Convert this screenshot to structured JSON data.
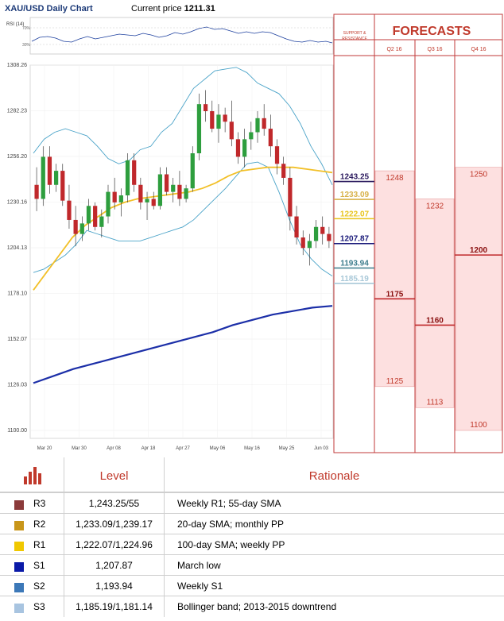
{
  "header": {
    "title": "XAU/USD Daily Chart",
    "price_label": "Current price",
    "price_value": "1211.31"
  },
  "rsi": {
    "label": "RSI (14)",
    "tick_top": "70%",
    "tick_bottom": "30%"
  },
  "forecasts": {
    "title": "FORECASTS",
    "sr_label_line1": "SUPPORT &",
    "sr_label_line2": "RESISTANCE",
    "columns": [
      {
        "label": "Q2 16",
        "high": 1248,
        "low": 1125,
        "mid": 1175
      },
      {
        "label": "Q3 16",
        "high": 1232,
        "low": 1113,
        "mid": 1160
      },
      {
        "label": "Q4 16",
        "high": 1250,
        "low": 1100,
        "mid": 1200
      }
    ]
  },
  "sr_levels": [
    {
      "value": "1243.25",
      "color": "#2b1a5e"
    },
    {
      "value": "1233.09",
      "color": "#d8b24a"
    },
    {
      "value": "1222.07",
      "color": "#e8c41a"
    },
    {
      "value": "1207.87",
      "color": "#1a1a7a"
    },
    {
      "value": "1193.94",
      "color": "#3c7c8c"
    },
    {
      "value": "1185.19",
      "color": "#a8c8d8"
    }
  ],
  "chart_data": {
    "type": "candlestick",
    "title": "XAU/USD Daily Chart",
    "yticks": [
      "1308.26",
      "1282.23",
      "1256.20",
      "1230.16",
      "1204.13",
      "1178.10",
      "1152.07",
      "1126.03",
      "1100.00"
    ],
    "ylim": [
      1100,
      1308.26
    ],
    "xticks": [
      "Mar 20",
      "Mar 30",
      "Apr 08",
      "Apr 18",
      "Apr 27",
      "May 06",
      "May 16",
      "May 25",
      "Jun 03"
    ],
    "series": [
      {
        "name": "20-day SMA"
      },
      {
        "name": "100-day SMA"
      },
      {
        "name": "Bollinger band"
      },
      {
        "name": "55-day SMA"
      }
    ],
    "candles": [
      [
        1240,
        1250,
        1225,
        1232
      ],
      [
        1232,
        1262,
        1228,
        1256
      ],
      [
        1256,
        1262,
        1235,
        1240
      ],
      [
        1240,
        1252,
        1236,
        1248
      ],
      [
        1248,
        1252,
        1228,
        1231
      ],
      [
        1231,
        1240,
        1215,
        1220
      ],
      [
        1220,
        1228,
        1205,
        1212
      ],
      [
        1212,
        1222,
        1208,
        1218
      ],
      [
        1218,
        1232,
        1214,
        1228
      ],
      [
        1228,
        1230,
        1214,
        1216
      ],
      [
        1216,
        1226,
        1210,
        1222
      ],
      [
        1222,
        1240,
        1218,
        1236
      ],
      [
        1236,
        1244,
        1226,
        1230
      ],
      [
        1230,
        1238,
        1222,
        1234
      ],
      [
        1234,
        1258,
        1230,
        1254
      ],
      [
        1254,
        1258,
        1236,
        1240
      ],
      [
        1240,
        1244,
        1226,
        1230
      ],
      [
        1230,
        1236,
        1220,
        1232
      ],
      [
        1232,
        1236,
        1226,
        1228
      ],
      [
        1228,
        1250,
        1226,
        1246
      ],
      [
        1246,
        1250,
        1234,
        1236
      ],
      [
        1236,
        1244,
        1230,
        1240
      ],
      [
        1240,
        1248,
        1228,
        1232
      ],
      [
        1232,
        1240,
        1230,
        1238
      ],
      [
        1238,
        1262,
        1236,
        1258
      ],
      [
        1258,
        1292,
        1254,
        1286
      ],
      [
        1286,
        1294,
        1276,
        1282
      ],
      [
        1282,
        1288,
        1270,
        1272
      ],
      [
        1272,
        1286,
        1264,
        1280
      ],
      [
        1280,
        1284,
        1270,
        1276
      ],
      [
        1276,
        1288,
        1262,
        1266
      ],
      [
        1266,
        1270,
        1252,
        1256
      ],
      [
        1256,
        1272,
        1250,
        1266
      ],
      [
        1266,
        1276,
        1260,
        1270
      ],
      [
        1270,
        1282,
        1264,
        1278
      ],
      [
        1278,
        1286,
        1268,
        1272
      ],
      [
        1272,
        1280,
        1256,
        1262
      ],
      [
        1262,
        1266,
        1246,
        1252
      ],
      [
        1252,
        1256,
        1240,
        1244
      ],
      [
        1244,
        1250,
        1214,
        1222
      ],
      [
        1222,
        1228,
        1206,
        1210
      ],
      [
        1210,
        1214,
        1200,
        1204
      ],
      [
        1204,
        1212,
        1194,
        1208
      ],
      [
        1208,
        1220,
        1204,
        1216
      ],
      [
        1216,
        1222,
        1206,
        1212
      ],
      [
        1212,
        1216,
        1204,
        1208
      ]
    ],
    "bollinger_upper": [
      1258,
      1266,
      1270,
      1272,
      1270,
      1268,
      1262,
      1255,
      1252,
      1254,
      1260,
      1262,
      1270,
      1275,
      1285,
      1295,
      1300,
      1305,
      1306,
      1307,
      1304,
      1298,
      1295,
      1292,
      1285,
      1275,
      1262,
      1252,
      1240
    ],
    "bollinger_lower": [
      1190,
      1192,
      1196,
      1200,
      1206,
      1214,
      1212,
      1210,
      1208,
      1208,
      1208,
      1210,
      1212,
      1214,
      1216,
      1220,
      1226,
      1232,
      1238,
      1245,
      1252,
      1253,
      1250,
      1236,
      1220,
      1206,
      1198,
      1192,
      1188
    ],
    "sma20": [
      1180,
      1190,
      1200,
      1210,
      1217,
      1222,
      1227,
      1230,
      1232,
      1233,
      1234,
      1235,
      1236,
      1238,
      1241,
      1245,
      1248,
      1249,
      1250,
      1250,
      1250,
      1249,
      1248,
      1247
    ],
    "sma100": [
      1127,
      1131,
      1135,
      1138,
      1141,
      1144,
      1147,
      1150,
      1153,
      1156,
      1160,
      1163,
      1166,
      1168,
      1170,
      1171
    ]
  },
  "table": {
    "head_level": "Level",
    "head_rationale": "Rationale",
    "rows": [
      {
        "code": "R3",
        "level": "1,243.25/55",
        "rationale": "Weekly R1; 55-day SMA",
        "color": "#8b3a3a"
      },
      {
        "code": "R2",
        "level": "1,233.09/1,239.17",
        "rationale": "20-day SMA; monthly PP",
        "color": "#c8961a"
      },
      {
        "code": "R1",
        "level": "1,222.07/1,224.96",
        "rationale": "100-day SMA; weekly PP",
        "color": "#f0c800"
      },
      {
        "code": "S1",
        "level": "1,207.87",
        "rationale": "March low",
        "color": "#0a1aa8"
      },
      {
        "code": "S2",
        "level": "1,193.94",
        "rationale": "Weekly S1",
        "color": "#3c78b8"
      },
      {
        "code": "S3",
        "level": "1,185.19/1,181.14",
        "rationale": "Bollinger band; 2013-2015 downtrend",
        "color": "#a8c4e0"
      }
    ]
  }
}
